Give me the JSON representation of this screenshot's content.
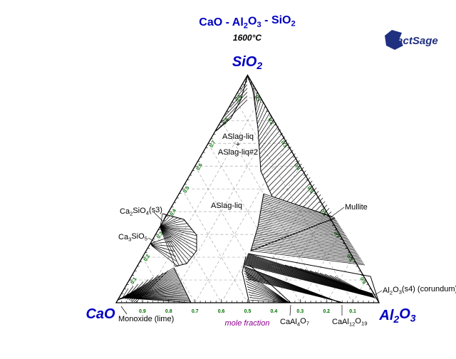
{
  "title": "CaO - Al2O3 - SiO2",
  "temperature": "1600°C",
  "logo": "FactSage",
  "vertices": {
    "top": "SiO2",
    "left": "CaO",
    "right": "Al2O3"
  },
  "axis_label": "mole fraction",
  "ticks": {
    "bottom": [
      "0.9",
      "0.8",
      "0.7",
      "0.6",
      "0.5",
      "0.4",
      "0.3",
      "0.2",
      "0.1"
    ],
    "left": [
      "0.1",
      "0.2",
      "0.3",
      "0.4",
      "0.5",
      "0.6",
      "0.7",
      "0.8",
      "0.9"
    ],
    "right": [
      "0.1",
      "0.2",
      "0.3",
      "0.4",
      "0.5",
      "0.6",
      "0.7",
      "0.8",
      "0.9"
    ]
  },
  "phase_labels": [
    "ASlag-liq",
    "ASlag-liq",
    "+",
    "ASlag-liq#2",
    "Ca2SiO4(s3)",
    "Ca3SiO5",
    "Mullite",
    "Al2O3(s4) (corundum)",
    "Monoxide (lime)",
    "CaAl4O7",
    "CaAl12O19"
  ]
}
